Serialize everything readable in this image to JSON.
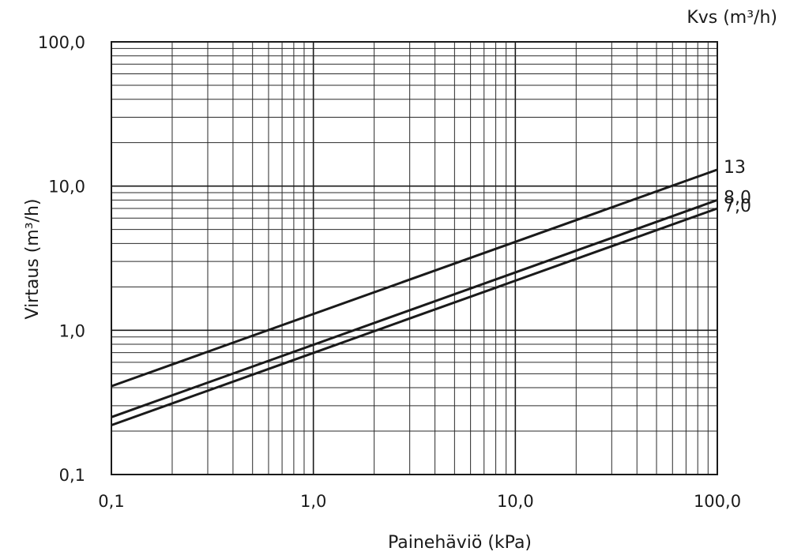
{
  "chart_data": {
    "type": "line",
    "x_scale": "log",
    "y_scale": "log",
    "xlim": [
      0.1,
      100.0
    ],
    "ylim": [
      0.1,
      100.0
    ],
    "xlabel": "Painehäviö (kPa)",
    "ylabel": "Virtaus  (m³/h)",
    "legend_title": "Kvs (m³/h)",
    "legend_placement": "top-right",
    "grid": true,
    "x_ticks": [
      {
        "value": 0.1,
        "label": "0,1"
      },
      {
        "value": 1.0,
        "label": "1,0"
      },
      {
        "value": 10.0,
        "label": "10,0"
      },
      {
        "value": 100.0,
        "label": "100,0"
      }
    ],
    "y_ticks": [
      {
        "value": 0.1,
        "label": "0,1"
      },
      {
        "value": 1.0,
        "label": "1,0"
      },
      {
        "value": 10.0,
        "label": "10,0"
      },
      {
        "value": 100.0,
        "label": "100,0"
      }
    ],
    "series": [
      {
        "name": "13",
        "x": [
          0.1,
          100.0
        ],
        "y": [
          0.41,
          13.0
        ]
      },
      {
        "name": "8,0",
        "x": [
          0.1,
          100.0
        ],
        "y": [
          0.25,
          8.0
        ]
      },
      {
        "name": "7,0",
        "x": [
          0.1,
          100.0
        ],
        "y": [
          0.22,
          7.0
        ]
      }
    ]
  }
}
